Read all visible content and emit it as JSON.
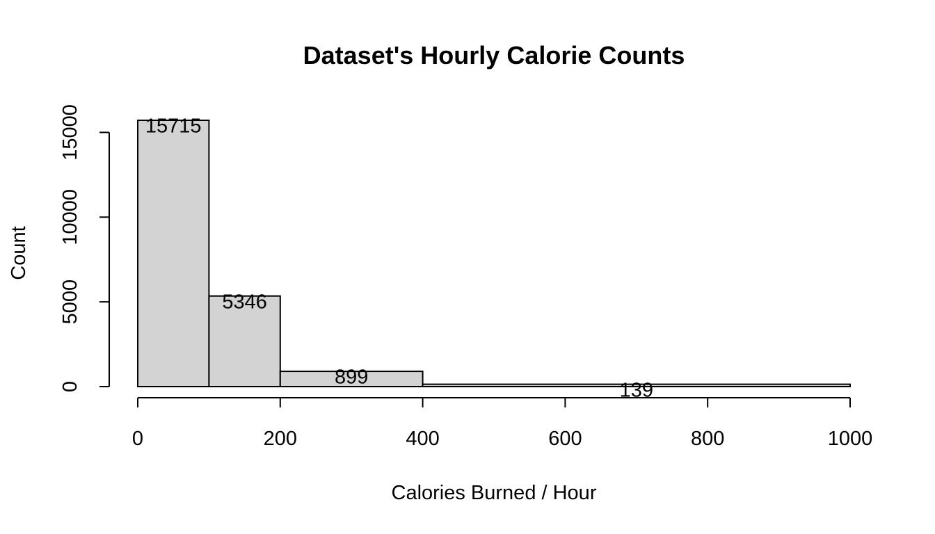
{
  "chart_data": {
    "type": "bar",
    "histogram": true,
    "title": "Dataset's Hourly Calorie Counts",
    "xlabel": "Calories Burned / Hour",
    "ylabel": "Count",
    "bins": [
      {
        "start": 0,
        "end": 100,
        "count": 15715,
        "label": "15715"
      },
      {
        "start": 100,
        "end": 200,
        "count": 5346,
        "label": "5346"
      },
      {
        "start": 200,
        "end": 400,
        "count": 899,
        "label": "899"
      },
      {
        "start": 400,
        "end": 1000,
        "count": 139,
        "label": "139"
      }
    ],
    "xlim": [
      0,
      1000
    ],
    "ylim": [
      0,
      15715
    ],
    "xticks": [
      {
        "value": 0,
        "label": "0"
      },
      {
        "value": 200,
        "label": "200"
      },
      {
        "value": 400,
        "label": "400"
      },
      {
        "value": 600,
        "label": "600"
      },
      {
        "value": 800,
        "label": "800"
      },
      {
        "value": 1000,
        "label": "1000"
      }
    ],
    "yticks": [
      {
        "value": 0,
        "label": "0"
      },
      {
        "value": 5000,
        "label": "5000"
      },
      {
        "value": 10000,
        "label": "10000"
      },
      {
        "value": 15000,
        "label": "15000"
      }
    ],
    "grid": false,
    "bar_color": "#d3d3d3",
    "edge_color": "#000000"
  }
}
